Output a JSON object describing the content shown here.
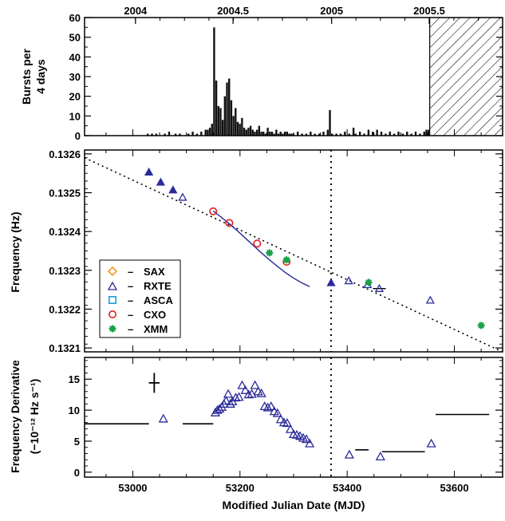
{
  "chart_data": [
    {
      "type": "bar",
      "panel": "bursts",
      "ylabel": "Bursts per 4 days",
      "ylabel_lines": [
        "Bursts per",
        "4 days"
      ],
      "xlim": [
        52910,
        53690
      ],
      "ylim": [
        0,
        60
      ],
      "yticks": [
        0,
        10,
        20,
        30,
        40,
        50,
        60
      ],
      "top_axis_label": "",
      "top_axis_ticks": [
        {
          "mjd": 53005,
          "label": "2004"
        },
        {
          "mjd": 53187,
          "label": "2004.5"
        },
        {
          "mjd": 53371,
          "label": "2005"
        },
        {
          "mjd": 53553,
          "label": "2005.5"
        }
      ],
      "hatched_region": [
        53554,
        53690
      ],
      "bin_width_days": 4,
      "bins": [
        [
          53026,
          1
        ],
        [
          53034,
          1
        ],
        [
          53042,
          1
        ],
        [
          53058,
          1
        ],
        [
          53066,
          2
        ],
        [
          53078,
          1
        ],
        [
          53086,
          1
        ],
        [
          53102,
          1
        ],
        [
          53110,
          2
        ],
        [
          53118,
          1
        ],
        [
          53126,
          2
        ],
        [
          53134,
          3
        ],
        [
          53138,
          3
        ],
        [
          53142,
          4
        ],
        [
          53146,
          6
        ],
        [
          53150,
          55
        ],
        [
          53154,
          28
        ],
        [
          53158,
          15
        ],
        [
          53162,
          14
        ],
        [
          53166,
          8
        ],
        [
          53170,
          20
        ],
        [
          53174,
          27
        ],
        [
          53178,
          29
        ],
        [
          53182,
          18
        ],
        [
          53186,
          10
        ],
        [
          53190,
          14
        ],
        [
          53194,
          7
        ],
        [
          53198,
          6
        ],
        [
          53202,
          9
        ],
        [
          53206,
          4
        ],
        [
          53210,
          3
        ],
        [
          53214,
          4
        ],
        [
          53218,
          5
        ],
        [
          53222,
          3
        ],
        [
          53226,
          2
        ],
        [
          53230,
          3
        ],
        [
          53234,
          5
        ],
        [
          53238,
          2
        ],
        [
          53242,
          2
        ],
        [
          53246,
          1
        ],
        [
          53250,
          4
        ],
        [
          53254,
          2
        ],
        [
          53258,
          2
        ],
        [
          53262,
          1
        ],
        [
          53266,
          3
        ],
        [
          53270,
          1
        ],
        [
          53274,
          2
        ],
        [
          53278,
          1
        ],
        [
          53282,
          2
        ],
        [
          53286,
          2
        ],
        [
          53290,
          1
        ],
        [
          53294,
          1
        ],
        [
          53298,
          1
        ],
        [
          53306,
          2
        ],
        [
          53314,
          1
        ],
        [
          53322,
          1
        ],
        [
          53330,
          2
        ],
        [
          53338,
          1
        ],
        [
          53346,
          1
        ],
        [
          53354,
          2
        ],
        [
          53362,
          3
        ],
        [
          53366,
          13
        ],
        [
          53370,
          1
        ],
        [
          53378,
          1
        ],
        [
          53386,
          1
        ],
        [
          53394,
          2
        ],
        [
          53402,
          1
        ],
        [
          53410,
          4
        ],
        [
          53414,
          1
        ],
        [
          53422,
          2
        ],
        [
          53430,
          1
        ],
        [
          53438,
          3
        ],
        [
          53446,
          2
        ],
        [
          53454,
          3
        ],
        [
          53462,
          2
        ],
        [
          53470,
          1
        ],
        [
          53478,
          2
        ],
        [
          53486,
          1
        ],
        [
          53494,
          2
        ],
        [
          53502,
          1
        ],
        [
          53510,
          2
        ],
        [
          53518,
          1
        ],
        [
          53526,
          2
        ],
        [
          53534,
          1
        ],
        [
          53542,
          2
        ],
        [
          53546,
          3
        ],
        [
          53550,
          3
        ]
      ]
    },
    {
      "type": "scatter",
      "panel": "frequency",
      "ylabel": "Frequency (Hz)",
      "xlim": [
        52910,
        53690
      ],
      "ylim": [
        0.13209,
        0.13261
      ],
      "yticks": [
        0.1321,
        0.1322,
        0.1323,
        0.1324,
        0.1325,
        0.1326
      ],
      "ytick_labels": [
        "0.1321",
        "0.1322",
        "0.1323",
        "0.1324",
        "0.1325",
        "0.1326"
      ],
      "vertical_line_mjd": 53370,
      "legend": [
        {
          "name": "SAX",
          "marker": "diamond",
          "color": "#f29a1e"
        },
        {
          "name": "RXTE",
          "marker": "triangle",
          "color": "#2b2b9a"
        },
        {
          "name": "ASCA",
          "marker": "square",
          "color": "#1b9fd8"
        },
        {
          "name": "CXO",
          "marker": "circle",
          "color": "#e02020"
        },
        {
          "name": "XMM",
          "marker": "asterisk",
          "color": "#1aa04a"
        }
      ],
      "legend_dash": "–",
      "dotted_fit": {
        "x": [
          52910,
          53690
        ],
        "y": [
          0.13259,
          0.13209
        ]
      },
      "solid_fit": {
        "x": [
          53150,
          53165,
          53180,
          53195,
          53210,
          53225,
          53240,
          53255,
          53270,
          53285,
          53300,
          53315,
          53330
        ],
        "y": [
          0.132453,
          0.132437,
          0.13242,
          0.132402,
          0.132383,
          0.132364,
          0.132345,
          0.132327,
          0.13231,
          0.132294,
          0.13228,
          0.132268,
          0.132258
        ]
      },
      "series": [
        {
          "name": "RXTE",
          "marker": "triangle",
          "color": "#2b2b9a",
          "x": [
            53030,
            53052,
            53075,
            53093,
            53370,
            53403,
            53438,
            53460,
            53555
          ],
          "y": [
            0.132553,
            0.132527,
            0.132507,
            0.132488,
            0.132268,
            0.132273,
            0.132263,
            0.132253,
            0.132223
          ],
          "filled": [
            true,
            true,
            true,
            false,
            true,
            false,
            false,
            false,
            false
          ]
        },
        {
          "name": "CXO",
          "marker": "circle",
          "color": "#e02020",
          "x": [
            53150,
            53180,
            53232,
            53287
          ],
          "y": [
            0.132452,
            0.132422,
            0.132369,
            0.132322
          ]
        },
        {
          "name": "XMM",
          "marker": "asterisk",
          "color": "#1aa04a",
          "x": [
            53255,
            53287,
            53440,
            53650
          ],
          "y": [
            0.132345,
            0.132327,
            0.132269,
            0.132158
          ]
        }
      ],
      "error_bar": {
        "x": 53460,
        "y": 0.132253,
        "xerr": 12
      }
    },
    {
      "type": "scatter",
      "panel": "frequency-derivative",
      "ylabel": "Frequency Derivative",
      "ylabel_units": "(−10⁻¹² Hz s⁻¹)",
      "xlabel": "Modified Julian Date (MJD)",
      "xlim": [
        52910,
        53690
      ],
      "ylim": [
        -0.8,
        18.5
      ],
      "yticks": [
        0,
        5,
        10,
        15
      ],
      "xticks": [
        53000,
        53200,
        53400,
        53600
      ],
      "vertical_line_mjd": 53370,
      "cross": {
        "x": 53040,
        "y": 14.4,
        "xerr": 10,
        "yerr": 1.6
      },
      "segments": [
        {
          "x": [
            52910,
            53030
          ],
          "y": 7.8
        },
        {
          "x": [
            53093,
            53150
          ],
          "y": 7.8
        },
        {
          "x": [
            53415,
            53440
          ],
          "y": 3.6
        },
        {
          "x": [
            53465,
            53545
          ],
          "y": 3.3
        },
        {
          "x": [
            53565,
            53665
          ],
          "y": 9.3
        }
      ],
      "triangles": {
        "color": "#2b2b9a",
        "x": [
          53057,
          53154,
          53158,
          53162,
          53166,
          53170,
          53174,
          53178,
          53182,
          53186,
          53192,
          53198,
          53204,
          53210,
          53216,
          53222,
          53228,
          53234,
          53240,
          53246,
          53252,
          53258,
          53264,
          53270,
          53276,
          53282,
          53288,
          53294,
          53300,
          53306,
          53312,
          53318,
          53324,
          53330,
          53404,
          53462,
          53557
        ],
        "y": [
          8.6,
          9.6,
          10.0,
          10.2,
          10.5,
          11.0,
          11.5,
          12.6,
          11.0,
          11.4,
          12.0,
          12.1,
          14.0,
          13.2,
          12.5,
          12.6,
          14.0,
          13.0,
          12.7,
          10.6,
          10.4,
          10.6,
          9.8,
          9.5,
          8.5,
          8.0,
          7.9,
          6.9,
          6.1,
          6.0,
          5.8,
          5.5,
          5.3,
          4.6,
          2.8,
          2.5,
          4.6
        ]
      }
    }
  ]
}
